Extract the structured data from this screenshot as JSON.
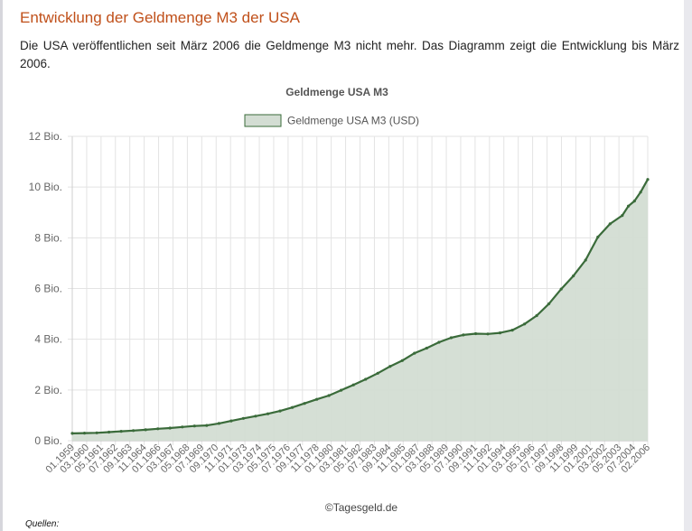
{
  "page": {
    "title": "Entwicklung der Geldmenge M3 der USA",
    "intro": "Die USA veröffentlichen seit März 2006 die Geldmenge M3 nicht mehr. Das Diagramm zeigt die Entwicklung bis März 2006.",
    "credit": "©Tagesgeld.de",
    "sources_label": "Quellen:"
  },
  "colors": {
    "title": "#c0501a",
    "line": "#3a6b3a",
    "fill": "#d3ddd3",
    "grid": "#e3e3e3"
  },
  "chart_data": {
    "type": "area",
    "title": "Geldmenge USA M3",
    "legend": {
      "label": "Geldmenge USA M3 (USD)",
      "position": "top"
    },
    "grid": true,
    "ylim": [
      0,
      12
    ],
    "y_ticks": [
      {
        "value": 0,
        "label": "0 Bio."
      },
      {
        "value": 2,
        "label": "2 Bio."
      },
      {
        "value": 4,
        "label": "4 Bio."
      },
      {
        "value": 6,
        "label": "6 Bio."
      },
      {
        "value": 8,
        "label": "8 Bio."
      },
      {
        "value": 10,
        "label": "10 Bio."
      },
      {
        "value": 12,
        "label": "12 Bio."
      }
    ],
    "x_range": [
      "1959-01",
      "2006-02"
    ],
    "x_tick_labels": [
      "01.1959",
      "03.1960",
      "05.1961",
      "07.1962",
      "09.1963",
      "11.1964",
      "01.1966",
      "03.1967",
      "05.1968",
      "07.1969",
      "09.1970",
      "11.1971",
      "01.1973",
      "03.1974",
      "05.1975",
      "07.1976",
      "09.1977",
      "11.1978",
      "01.1980",
      "03.1981",
      "05.1982",
      "07.1983",
      "09.1984",
      "11.1985",
      "01.1987",
      "03.1988",
      "05.1989",
      "07.1990",
      "09.1991",
      "11.1992",
      "01.1994",
      "03.1995",
      "05.1996",
      "07.1997",
      "09.1998",
      "11.1999",
      "01.2001",
      "03.2002",
      "05.2003",
      "07.2004",
      "02.2006"
    ],
    "series": [
      {
        "name": "Geldmenge USA M3 (USD)",
        "unit": "Bio. USD",
        "points": [
          {
            "x": "1959-01",
            "y": 0.29
          },
          {
            "x": "1960-01",
            "y": 0.3
          },
          {
            "x": "1961-01",
            "y": 0.31
          },
          {
            "x": "1962-01",
            "y": 0.34
          },
          {
            "x": "1963-01",
            "y": 0.37
          },
          {
            "x": "1964-01",
            "y": 0.4
          },
          {
            "x": "1965-01",
            "y": 0.43
          },
          {
            "x": "1966-01",
            "y": 0.47
          },
          {
            "x": "1967-01",
            "y": 0.5
          },
          {
            "x": "1968-01",
            "y": 0.54
          },
          {
            "x": "1969-01",
            "y": 0.58
          },
          {
            "x": "1970-01",
            "y": 0.6
          },
          {
            "x": "1971-01",
            "y": 0.68
          },
          {
            "x": "1972-01",
            "y": 0.78
          },
          {
            "x": "1973-01",
            "y": 0.88
          },
          {
            "x": "1974-01",
            "y": 0.97
          },
          {
            "x": "1975-01",
            "y": 1.06
          },
          {
            "x": "1976-01",
            "y": 1.17
          },
          {
            "x": "1977-01",
            "y": 1.31
          },
          {
            "x": "1978-01",
            "y": 1.47
          },
          {
            "x": "1979-01",
            "y": 1.63
          },
          {
            "x": "1980-01",
            "y": 1.78
          },
          {
            "x": "1981-01",
            "y": 1.99
          },
          {
            "x": "1982-01",
            "y": 2.2
          },
          {
            "x": "1983-01",
            "y": 2.42
          },
          {
            "x": "1984-01",
            "y": 2.66
          },
          {
            "x": "1985-01",
            "y": 2.93
          },
          {
            "x": "1986-01",
            "y": 3.16
          },
          {
            "x": "1987-01",
            "y": 3.45
          },
          {
            "x": "1988-01",
            "y": 3.65
          },
          {
            "x": "1989-01",
            "y": 3.88
          },
          {
            "x": "1990-01",
            "y": 4.06
          },
          {
            "x": "1991-01",
            "y": 4.17
          },
          {
            "x": "1992-01",
            "y": 4.22
          },
          {
            "x": "1993-01",
            "y": 4.21
          },
          {
            "x": "1994-01",
            "y": 4.25
          },
          {
            "x": "1995-01",
            "y": 4.36
          },
          {
            "x": "1996-01",
            "y": 4.6
          },
          {
            "x": "1997-01",
            "y": 4.93
          },
          {
            "x": "1998-01",
            "y": 5.4
          },
          {
            "x": "1999-01",
            "y": 5.98
          },
          {
            "x": "2000-01",
            "y": 6.5
          },
          {
            "x": "2001-01",
            "y": 7.12
          },
          {
            "x": "2002-01",
            "y": 8.03
          },
          {
            "x": "2003-01",
            "y": 8.55
          },
          {
            "x": "2004-01",
            "y": 8.88
          },
          {
            "x": "2004-07",
            "y": 9.25
          },
          {
            "x": "2005-01",
            "y": 9.45
          },
          {
            "x": "2005-07",
            "y": 9.8
          },
          {
            "x": "2006-02",
            "y": 10.3
          }
        ]
      }
    ]
  }
}
